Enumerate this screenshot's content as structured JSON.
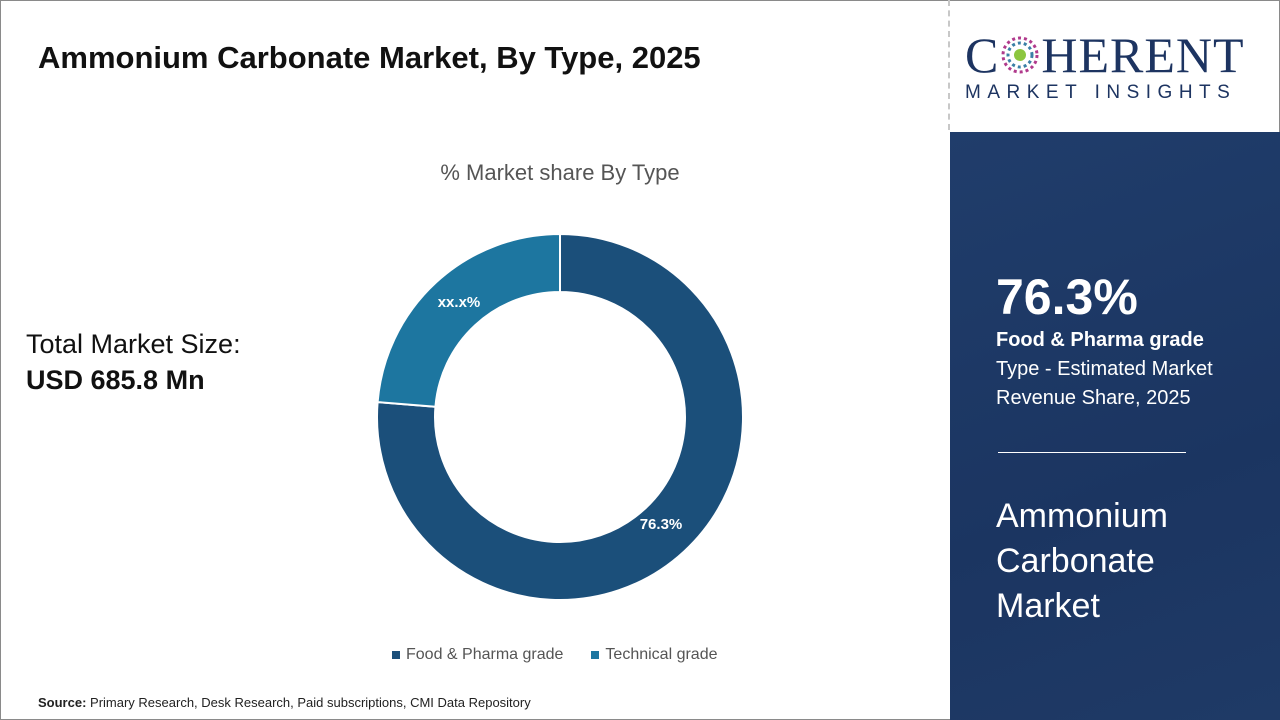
{
  "header": {
    "title": "Ammonium Carbonate Market, By Type, 2025"
  },
  "logo": {
    "main_left": "C",
    "main_right": "HERENT",
    "sub": "MARKET INSIGHTS"
  },
  "total": {
    "label": "Total Market Size:",
    "value": "USD 685.8 Mn"
  },
  "panel": {
    "percent": "76.3%",
    "segment": "Food & Pharma grade",
    "desc1": "Type - Estimated Market",
    "desc2": "Revenue Share, 2025",
    "market1": "Ammonium",
    "market2": "Carbonate",
    "market3": "Market"
  },
  "source": {
    "label": "Source:",
    "text": " Primary Research, Desk Research, Paid subscriptions, CMI Data Repository"
  },
  "colors": {
    "accent": "#1f4e79",
    "panel": "#1f3a66"
  },
  "chart_data": {
    "type": "pie",
    "donut": true,
    "title": "% Market share By Type",
    "categories": [
      "Food & Pharma grade",
      "Technical grade"
    ],
    "values": [
      76.3,
      23.7
    ],
    "data_labels": [
      "76.3%",
      "xx.x%"
    ],
    "colors": [
      "#1b4f7a",
      "#1d76a0"
    ],
    "legend": "bottom"
  }
}
